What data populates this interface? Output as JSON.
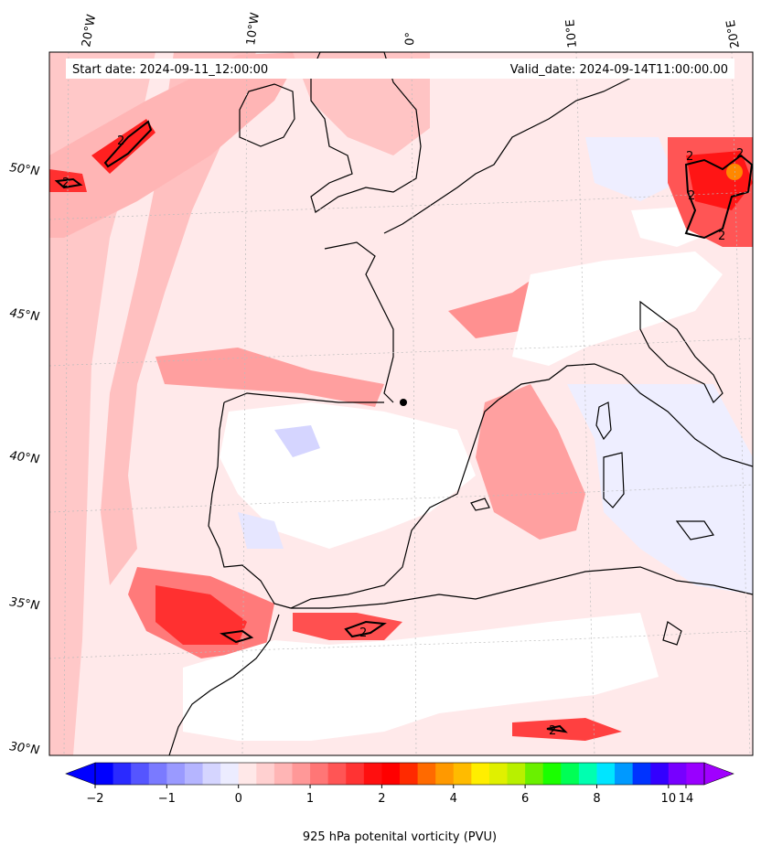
{
  "header": {
    "start_date": "Start date: 2024-09-11_12:00:00",
    "valid_date": "Valid_date: 2024-09-14T11:00:00.00"
  },
  "lon_labels": [
    "20°W",
    "10°W",
    "0°",
    "10°E",
    "20°E"
  ],
  "lat_labels": [
    "50°N",
    "45°N",
    "40°N",
    "35°N",
    "30°N"
  ],
  "contour_label": "2",
  "colorbar": {
    "title": "925 hPa potenital vorticity (PVU)",
    "ticks": [
      "−2",
      "−1",
      "0",
      "1",
      "2",
      "4",
      "6",
      "8",
      "10",
      "14"
    ],
    "colors": [
      "#0000ff",
      "#2a2aff",
      "#5555ff",
      "#7a7aff",
      "#9a9aff",
      "#b5b5ff",
      "#d5d5ff",
      "#ececff",
      "#ffe8e8",
      "#ffd0d0",
      "#ffb5b5",
      "#ff9898",
      "#ff7676",
      "#ff5555",
      "#ff3333",
      "#ff0f0f",
      "#ff0000",
      "#ff2a00",
      "#ff6a00",
      "#ff9900",
      "#ffbb00",
      "#ffee00",
      "#e0f000",
      "#b8f000",
      "#6af000",
      "#1aff00",
      "#00ff55",
      "#00ffb0",
      "#00e5ff",
      "#0099ff",
      "#0033ff",
      "#3300ff",
      "#7700ff",
      "#9900ff"
    ],
    "min_color": "#0000ff",
    "max_color": "#a000ff"
  },
  "colors": {
    "background_pink": "#ffe9ea",
    "light_red": "#ffc0c0",
    "mid_red": "#ff8080",
    "strong_red": "#ff2020",
    "white": "#ffffff",
    "pale_blue": "#e8e8ff",
    "coast": "#000000"
  }
}
